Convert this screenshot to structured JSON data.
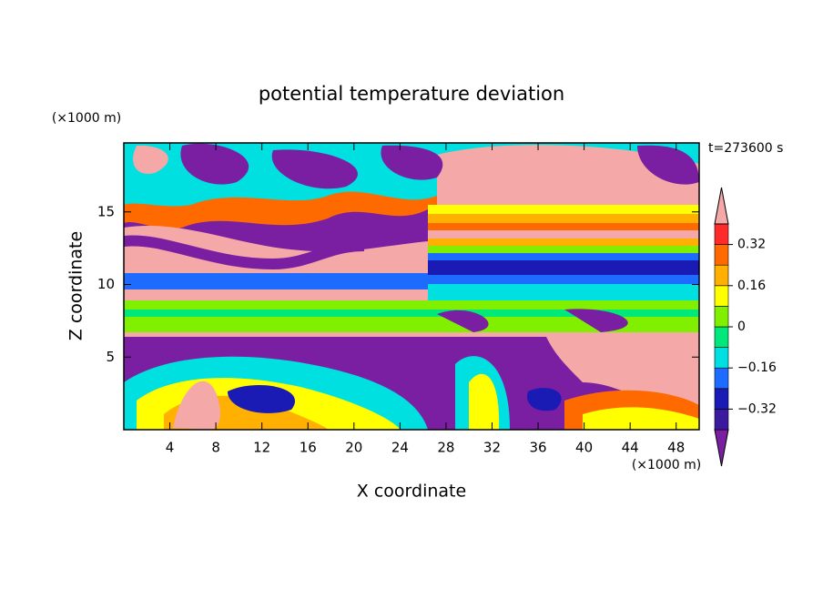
{
  "chart_data": {
    "type": "contourf",
    "title": "potential temperature deviation",
    "x_label": "X coordinate",
    "y_label": "Z coordinate",
    "x_unit": "(×1000 m)",
    "y_unit": "(×1000 m)",
    "time_label": "t=273600 s",
    "xlim": [
      0,
      50
    ],
    "xticks": [
      4,
      8,
      12,
      16,
      20,
      24,
      28,
      32,
      36,
      40,
      44,
      48
    ],
    "ylim": [
      0,
      19.75
    ],
    "yticks": [
      5,
      10,
      15
    ],
    "colorbar": {
      "levels": [
        -0.4,
        -0.32,
        -0.24,
        -0.16,
        -0.08,
        0,
        0.08,
        0.16,
        0.24,
        0.32,
        0.4
      ],
      "ticks": [
        {
          "value": -0.32,
          "label": "−0.32"
        },
        {
          "value": -0.16,
          "label": "−0.16"
        },
        0,
        0.16,
        0.32
      ],
      "colors": [
        "#7b1fa2",
        "#3c1a9e",
        "#1a1ab4",
        "#1e6cff",
        "#00e0e0",
        "#00e87a",
        "#80f000",
        "#ffff00",
        "#ffb000",
        "#ff6a00",
        "#ff2a2a",
        "#f5a8a8"
      ]
    }
  }
}
